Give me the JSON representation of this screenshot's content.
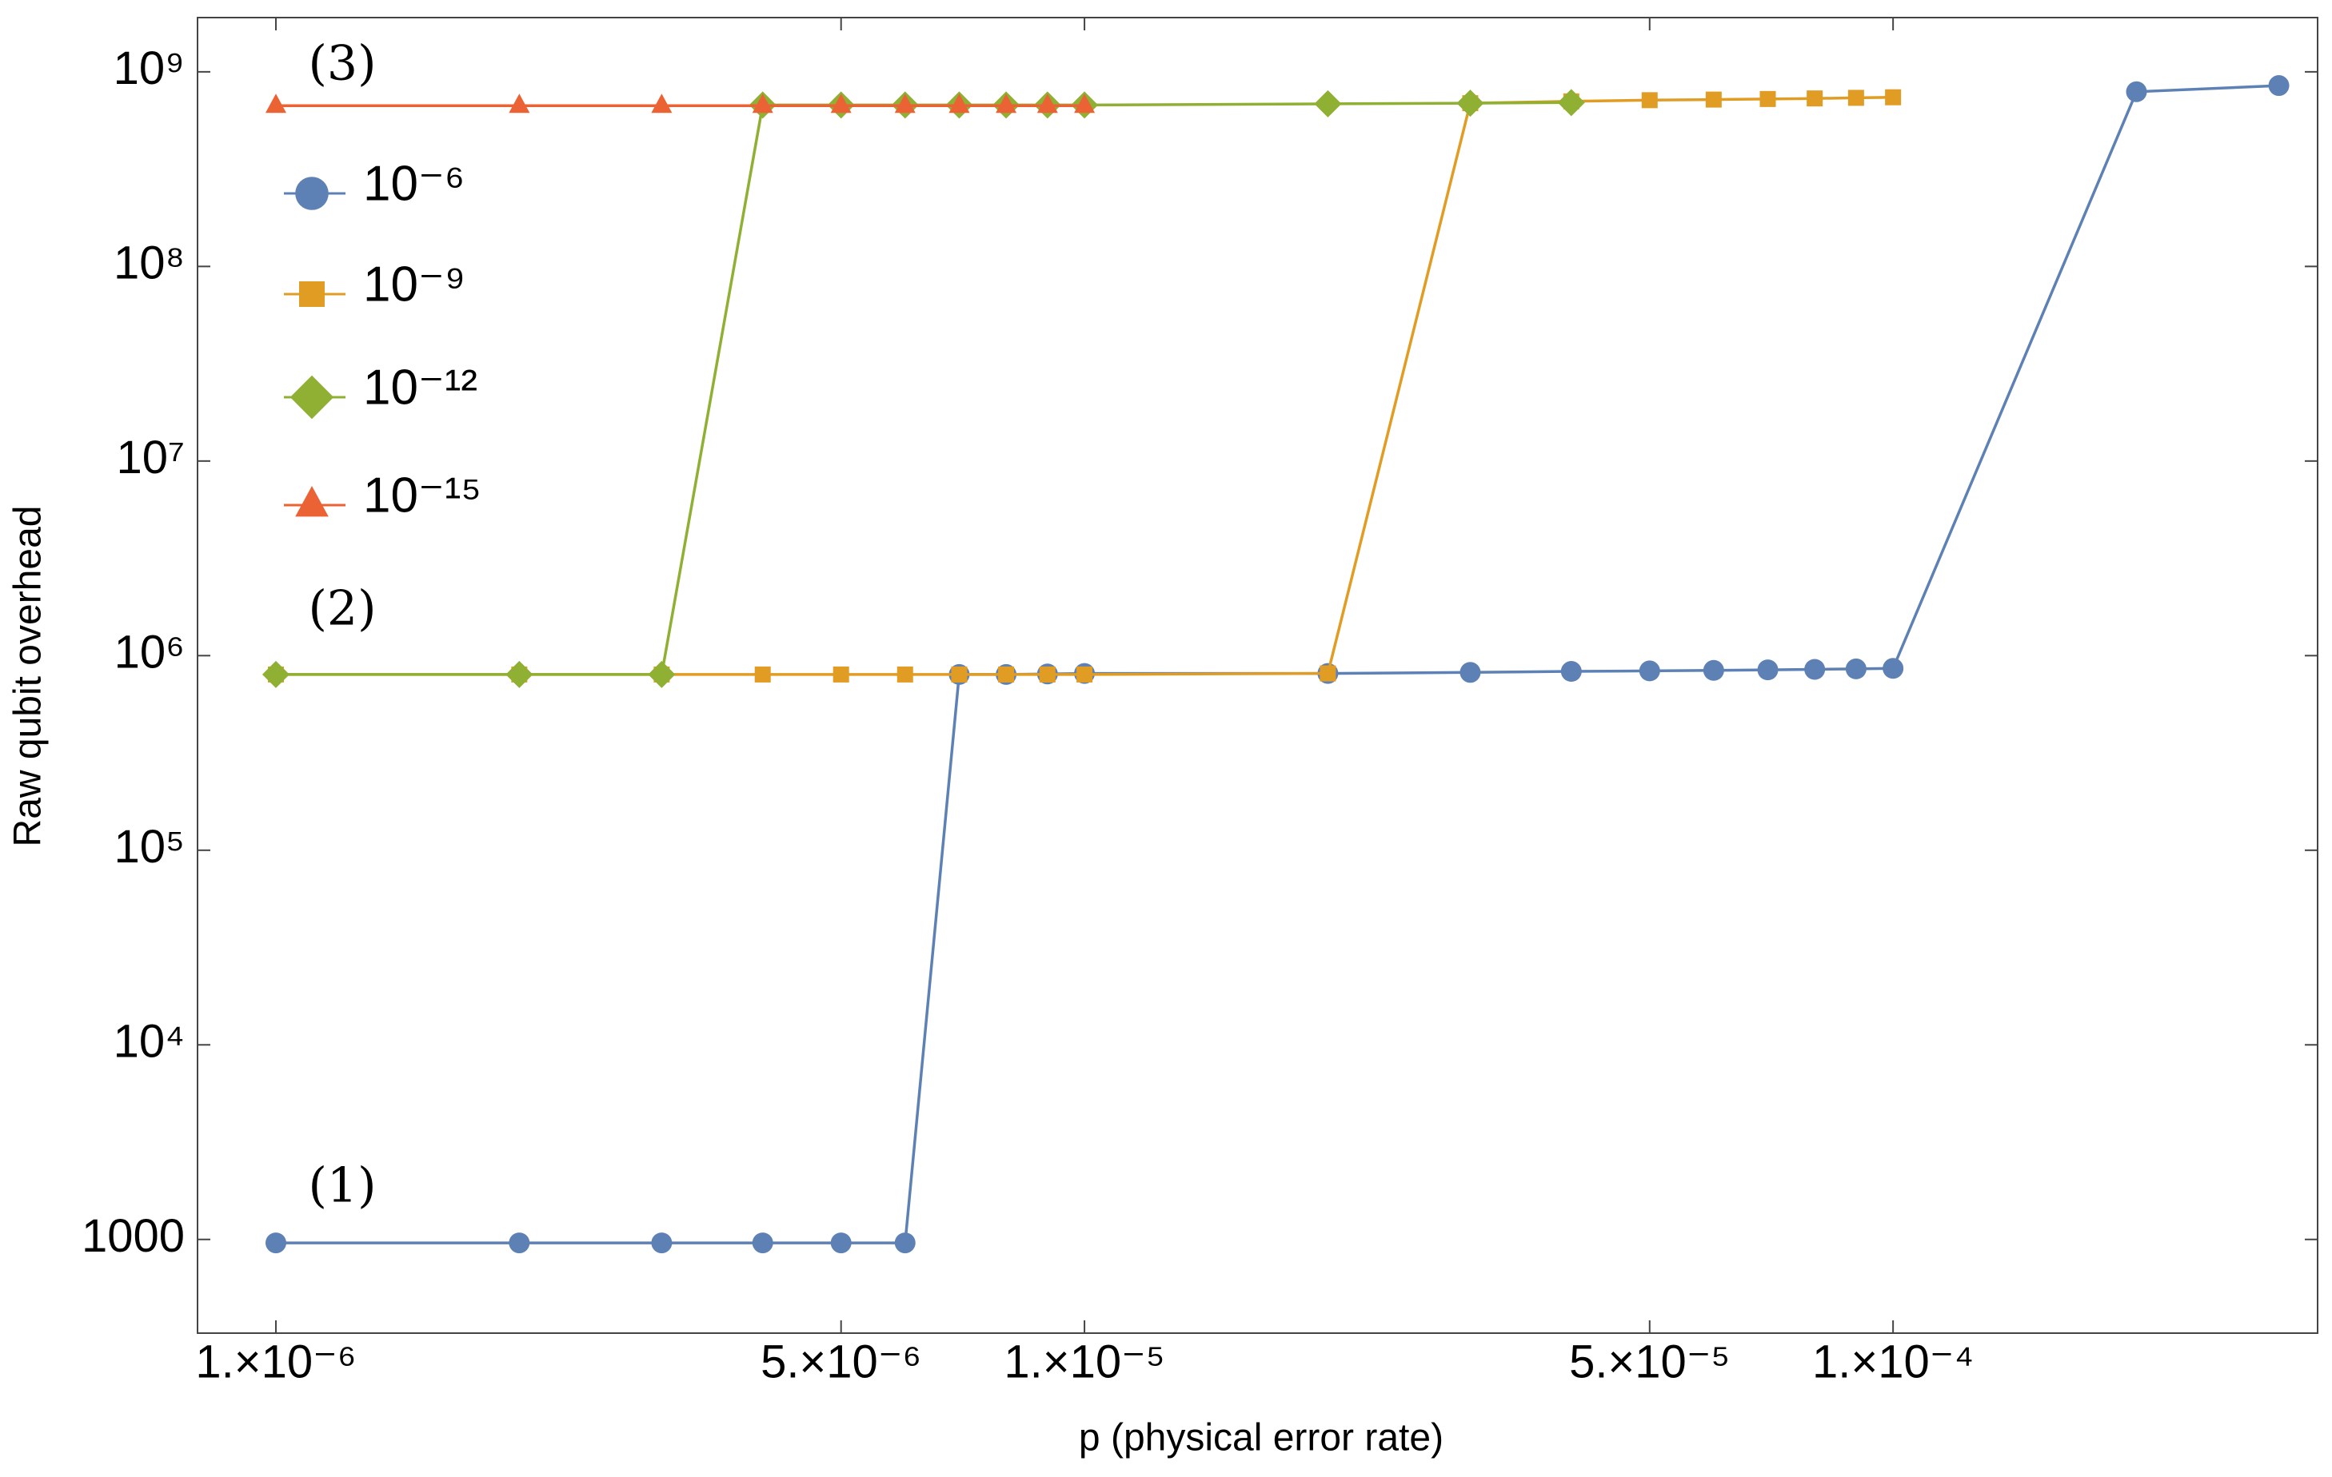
{
  "chart_data": {
    "type": "line",
    "log_x": true,
    "log_y": true,
    "grid": false,
    "legend": "top-left",
    "x_label": "p (physical error rate)",
    "y_label": "Raw qubit overhead",
    "annotations": [
      "(3)",
      "(2)",
      "(1)"
    ],
    "x": [
      1e-06,
      2e-06,
      3e-06,
      4e-06,
      5e-06,
      6e-06,
      7e-06,
      8e-06,
      9e-06,
      1e-05,
      2e-05,
      3e-05,
      4e-05,
      5e-05,
      6e-05,
      7e-05,
      8e-05,
      9e-05,
      0.0001,
      0.0002,
      0.0003
    ],
    "xlim": [
      8e-07,
      0.000335
    ],
    "xticks": [
      {
        "value": 1e-06,
        "label": "1.×10⁻⁶"
      },
      {
        "value": 5e-06,
        "label": "5.×10⁻⁶"
      },
      {
        "value": 1e-05,
        "label": "1.×10⁻⁵"
      },
      {
        "value": 5e-05,
        "label": "5.×10⁻⁵"
      },
      {
        "value": 0.0001,
        "label": "1.×10⁻⁴"
      }
    ],
    "ylim": [
      330,
      1900000000.0
    ],
    "yticks": [
      1000,
      {
        "value": 10000,
        "label": "10⁴"
      },
      {
        "value": 100000,
        "label": "10⁵"
      },
      {
        "value": 1000000,
        "label": "10⁶"
      },
      {
        "value": 10000000,
        "label": "10⁷"
      },
      {
        "value": 100000000,
        "label": "10⁸"
      },
      {
        "value": 1000000000,
        "label": "10⁹"
      }
    ],
    "series": [
      {
        "name": "10⁻⁶",
        "color": "#5e81b5",
        "marker": "circle",
        "values": [
          960,
          960,
          960,
          960,
          960,
          960,
          800000,
          800000,
          805000,
          810000,
          810000,
          820000,
          830000,
          835000,
          840000,
          845000,
          850000,
          855000,
          860000,
          790000000,
          850000000
        ]
      },
      {
        "name": "10⁻⁹",
        "color": "#e19c24",
        "marker": "square",
        "values": [
          800000,
          800000,
          800000,
          800000,
          800000,
          800000,
          800000,
          800000,
          800000,
          800000,
          810000,
          690000000,
          705000000,
          715000000,
          720000000,
          725000000,
          730000000,
          735000000,
          740000000,
          null,
          null
        ]
      },
      {
        "name": "10⁻¹²",
        "color": "#8fb032",
        "marker": "diamond",
        "values": [
          800000,
          800000,
          800000,
          675000000,
          675000000,
          675000000,
          675000000,
          675000000,
          675000000,
          675000000,
          685000000,
          690000000,
          695000000,
          null,
          null,
          null,
          null,
          null,
          null,
          null,
          null
        ]
      },
      {
        "name": "10⁻¹⁵",
        "color": "#eb6235",
        "marker": "triangle",
        "values": [
          670000000,
          670000000,
          670000000,
          670000000,
          670000000,
          670000000,
          670000000,
          670000000,
          670000000,
          670000000,
          null,
          null,
          null,
          null,
          null,
          null,
          null,
          null,
          null,
          null,
          null
        ]
      }
    ]
  }
}
